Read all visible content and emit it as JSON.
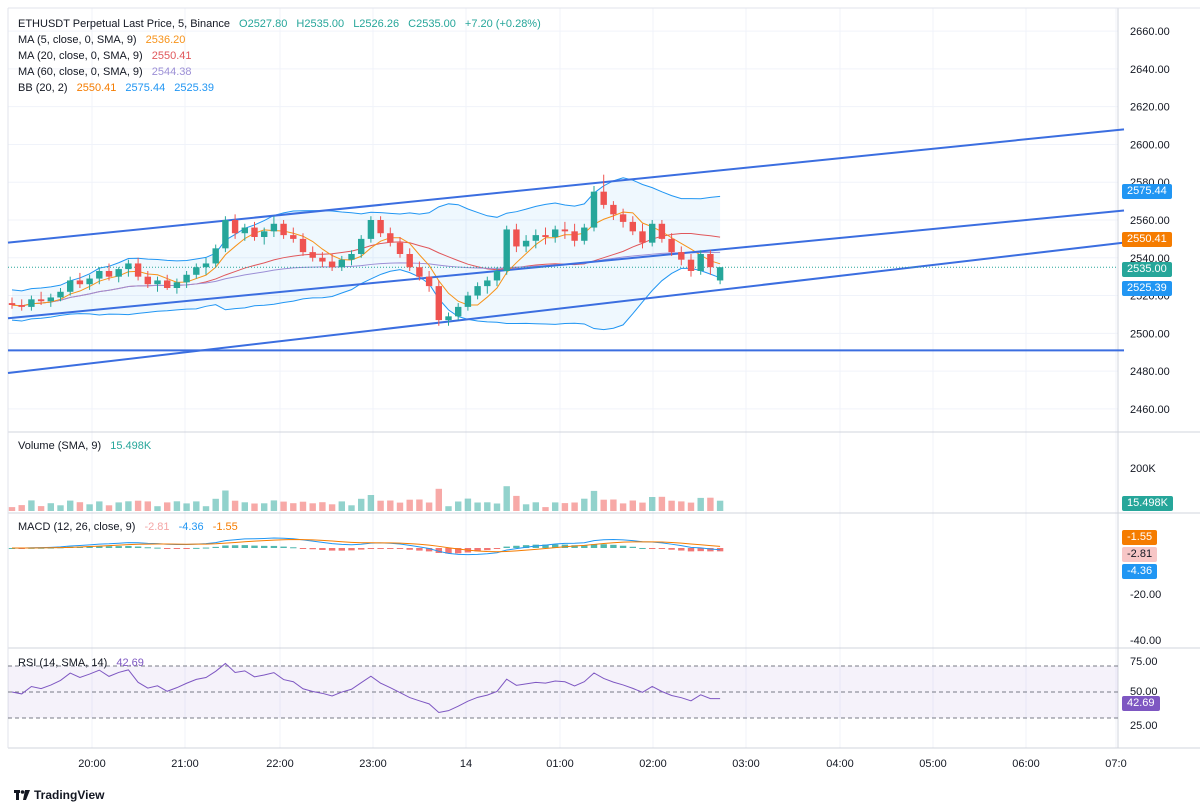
{
  "header": {
    "symbol": "ETHUSDT Perpetual Last Price, 5, Binance",
    "open": "O2527.80",
    "high": "H2535.00",
    "low": "L2526.26",
    "close": "C2535.00",
    "change": "+7.20 (+0.28%)"
  },
  "indicators": [
    {
      "label": "MA (5, close, 0, SMA, 9)",
      "value": "2536.20",
      "color": "#f7931a"
    },
    {
      "label": "MA (20, close, 0, SMA, 9)",
      "value": "2550.41",
      "color": "#e0575b"
    },
    {
      "label": "MA (60, close, 0, SMA, 9)",
      "value": "2544.38",
      "color": "#9c8fd6"
    }
  ],
  "bb": {
    "label": "BB (20, 2)",
    "basis": "2550.41",
    "upper": "2575.44",
    "lower": "2525.39",
    "basis_color": "#f7931a",
    "band_color": "#2196f3"
  },
  "price_tags": [
    {
      "text": "2575.44",
      "value": 2575.44,
      "color": "#2196f3"
    },
    {
      "text": "2550.41",
      "value": 2550.41,
      "color": "#f57c00"
    },
    {
      "text": "2535.00",
      "value": 2535.0,
      "color": "#26a69a"
    },
    {
      "text": "2525.39",
      "value": 2525.39,
      "color": "#2196f3"
    }
  ],
  "volume_pane": {
    "label": "Volume (SMA, 9)",
    "value": "15.498K",
    "tag": "15.498K",
    "tag_color": "#26a69a"
  },
  "macd_pane": {
    "label": "MACD (12, 26, close, 9)",
    "hist": "-2.81",
    "macd": "-4.36",
    "signal": "-1.55",
    "tags": [
      {
        "text": "-1.55",
        "value": -1.55,
        "color": "#f57c00"
      },
      {
        "text": "-2.81",
        "value": -2.81,
        "color": "#f7c6c6"
      },
      {
        "text": "-4.36",
        "value": -4.36,
        "color": "#2196f3"
      }
    ]
  },
  "rsi_pane": {
    "label": "RSI (14, SMA, 14)",
    "value": "42.69",
    "tag": "42.69",
    "tag_color": "#7e57c2"
  },
  "footer": {
    "brand": "TradingView"
  },
  "chart_data": {
    "type": "candlestick",
    "price_axis": {
      "ticks": [
        "2660.00",
        "2640.00",
        "2620.00",
        "2600.00",
        "2580.00",
        "2560.00",
        "2540.00",
        "2520.00",
        "2500.00",
        "2480.00",
        "2460.00"
      ],
      "ylim": [
        2452,
        2668
      ]
    },
    "time_axis": {
      "ticks": [
        "20:00",
        "21:00",
        "22:00",
        "23:00",
        "14",
        "01:00",
        "02:00",
        "03:00",
        "04:00",
        "05:00",
        "06:00",
        "07:0"
      ]
    },
    "volume_axis": {
      "ticks": [
        "200K"
      ]
    },
    "macd_axis": {
      "ticks": [
        "-20.00",
        "-40.00"
      ]
    },
    "rsi_axis": {
      "ticks": [
        "75.00",
        "50.00",
        "25.00"
      ]
    },
    "candles_ohlc": [
      [
        2516,
        2519,
        2513,
        2515
      ],
      [
        2515,
        2518,
        2512,
        2514
      ],
      [
        2514,
        2520,
        2512,
        2518
      ],
      [
        2518,
        2522,
        2515,
        2517
      ],
      [
        2517,
        2521,
        2514,
        2519
      ],
      [
        2519,
        2524,
        2517,
        2522
      ],
      [
        2522,
        2530,
        2520,
        2528
      ],
      [
        2528,
        2532,
        2524,
        2526
      ],
      [
        2526,
        2531,
        2523,
        2529
      ],
      [
        2529,
        2535,
        2526,
        2533
      ],
      [
        2533,
        2537,
        2528,
        2530
      ],
      [
        2530,
        2535,
        2527,
        2534
      ],
      [
        2534,
        2539,
        2530,
        2537
      ],
      [
        2537,
        2540,
        2528,
        2530
      ],
      [
        2530,
        2533,
        2524,
        2526
      ],
      [
        2526,
        2530,
        2522,
        2528
      ],
      [
        2528,
        2531,
        2523,
        2524
      ],
      [
        2524,
        2529,
        2521,
        2527
      ],
      [
        2527,
        2533,
        2524,
        2531
      ],
      [
        2531,
        2537,
        2529,
        2535
      ],
      [
        2535,
        2540,
        2531,
        2537
      ],
      [
        2537,
        2547,
        2535,
        2545
      ],
      [
        2545,
        2562,
        2543,
        2560
      ],
      [
        2560,
        2563,
        2550,
        2553
      ],
      [
        2553,
        2558,
        2549,
        2556
      ],
      [
        2556,
        2559,
        2549,
        2551
      ],
      [
        2551,
        2556,
        2547,
        2554
      ],
      [
        2554,
        2562,
        2551,
        2558
      ],
      [
        2558,
        2560,
        2550,
        2552
      ],
      [
        2552,
        2556,
        2548,
        2550
      ],
      [
        2550,
        2553,
        2541,
        2543
      ],
      [
        2543,
        2546,
        2538,
        2540
      ],
      [
        2540,
        2543,
        2535,
        2538
      ],
      [
        2538,
        2542,
        2533,
        2535
      ],
      [
        2535,
        2541,
        2533,
        2539
      ],
      [
        2539,
        2544,
        2536,
        2542
      ],
      [
        2542,
        2552,
        2540,
        2550
      ],
      [
        2550,
        2562,
        2548,
        2560
      ],
      [
        2560,
        2562,
        2551,
        2553
      ],
      [
        2553,
        2556,
        2546,
        2548
      ],
      [
        2548,
        2551,
        2540,
        2542
      ],
      [
        2542,
        2545,
        2533,
        2535
      ],
      [
        2535,
        2538,
        2528,
        2530
      ],
      [
        2530,
        2533,
        2522,
        2525
      ],
      [
        2525,
        2528,
        2504,
        2507
      ],
      [
        2507,
        2511,
        2504,
        2509
      ],
      [
        2509,
        2516,
        2507,
        2514
      ],
      [
        2514,
        2522,
        2512,
        2520
      ],
      [
        2520,
        2527,
        2518,
        2525
      ],
      [
        2525,
        2530,
        2521,
        2528
      ],
      [
        2528,
        2535,
        2525,
        2533
      ],
      [
        2533,
        2557,
        2531,
        2555
      ],
      [
        2555,
        2558,
        2543,
        2546
      ],
      [
        2546,
        2552,
        2543,
        2549
      ],
      [
        2549,
        2555,
        2545,
        2552
      ],
      [
        2552,
        2556,
        2547,
        2551
      ],
      [
        2551,
        2557,
        2548,
        2555
      ],
      [
        2555,
        2559,
        2550,
        2554
      ],
      [
        2554,
        2558,
        2546,
        2549
      ],
      [
        2549,
        2558,
        2547,
        2556
      ],
      [
        2556,
        2578,
        2554,
        2575
      ],
      [
        2575,
        2584,
        2566,
        2568
      ],
      [
        2568,
        2570,
        2560,
        2563
      ],
      [
        2563,
        2566,
        2556,
        2559
      ],
      [
        2559,
        2562,
        2552,
        2554
      ],
      [
        2554,
        2558,
        2545,
        2548
      ],
      [
        2548,
        2560,
        2546,
        2558
      ],
      [
        2558,
        2560,
        2548,
        2550
      ],
      [
        2550,
        2553,
        2541,
        2543
      ],
      [
        2543,
        2546,
        2536,
        2539
      ],
      [
        2539,
        2542,
        2530,
        2533
      ],
      [
        2533,
        2544,
        2531,
        2542
      ],
      [
        2542,
        2544,
        2531,
        2535
      ],
      [
        2528,
        2535,
        2526,
        2535
      ]
    ]
  }
}
